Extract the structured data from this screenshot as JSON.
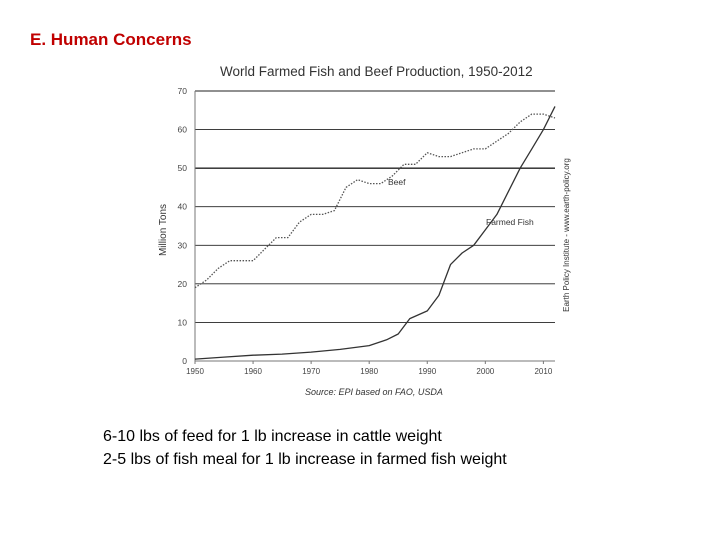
{
  "slide": {
    "title": "E. Human Concerns",
    "bullets": [
      "6-10 lbs of feed for 1 lb increase in cattle weight",
      "2-5 lbs of fish meal for 1 lb increase in farmed fish weight"
    ]
  },
  "chart_data": {
    "type": "line",
    "title": "World Farmed Fish and Beef Production, 1950-2012",
    "ylabel": "Million Tons",
    "xlabel": "",
    "source": "Source: EPI based on FAO, USDA",
    "credit": "Earth Policy Institute - www.earth-policy.org",
    "xlim": [
      1950,
      2012
    ],
    "ylim": [
      0,
      70
    ],
    "x_ticks": [
      1950,
      1960,
      1970,
      1980,
      1990,
      2000,
      2010
    ],
    "y_ticks": [
      0,
      10,
      20,
      30,
      40,
      50,
      60,
      70
    ],
    "grid": "horizontal",
    "colors": {
      "beef": "#555555",
      "fish": "#333333",
      "axis": "#777777",
      "grid": "#222222"
    },
    "series": [
      {
        "name": "Beef",
        "style": "dotted",
        "x": [
          1950,
          1952,
          1954,
          1956,
          1958,
          1960,
          1962,
          1964,
          1966,
          1968,
          1970,
          1972,
          1974,
          1976,
          1978,
          1980,
          1982,
          1984,
          1986,
          1988,
          1990,
          1992,
          1994,
          1996,
          1998,
          2000,
          2002,
          2004,
          2006,
          2008,
          2010,
          2012
        ],
        "values": [
          19,
          21,
          24,
          26,
          26,
          26,
          29,
          32,
          32,
          36,
          38,
          38,
          39,
          45,
          47,
          46,
          46,
          48,
          51,
          51,
          54,
          53,
          53,
          54,
          55,
          55,
          57,
          59,
          62,
          64,
          64,
          63
        ]
      },
      {
        "name": "Farmed Fish",
        "style": "solid",
        "x": [
          1950,
          1955,
          1960,
          1965,
          1970,
          1975,
          1980,
          1983,
          1985,
          1987,
          1990,
          1992,
          1994,
          1996,
          1998,
          2000,
          2002,
          2004,
          2006,
          2008,
          2010,
          2012
        ],
        "values": [
          0.5,
          1,
          1.5,
          1.8,
          2.3,
          3,
          4,
          5.5,
          7,
          11,
          13,
          17,
          25,
          28,
          30,
          34,
          38,
          44,
          50,
          55,
          60,
          66
        ]
      }
    ]
  }
}
